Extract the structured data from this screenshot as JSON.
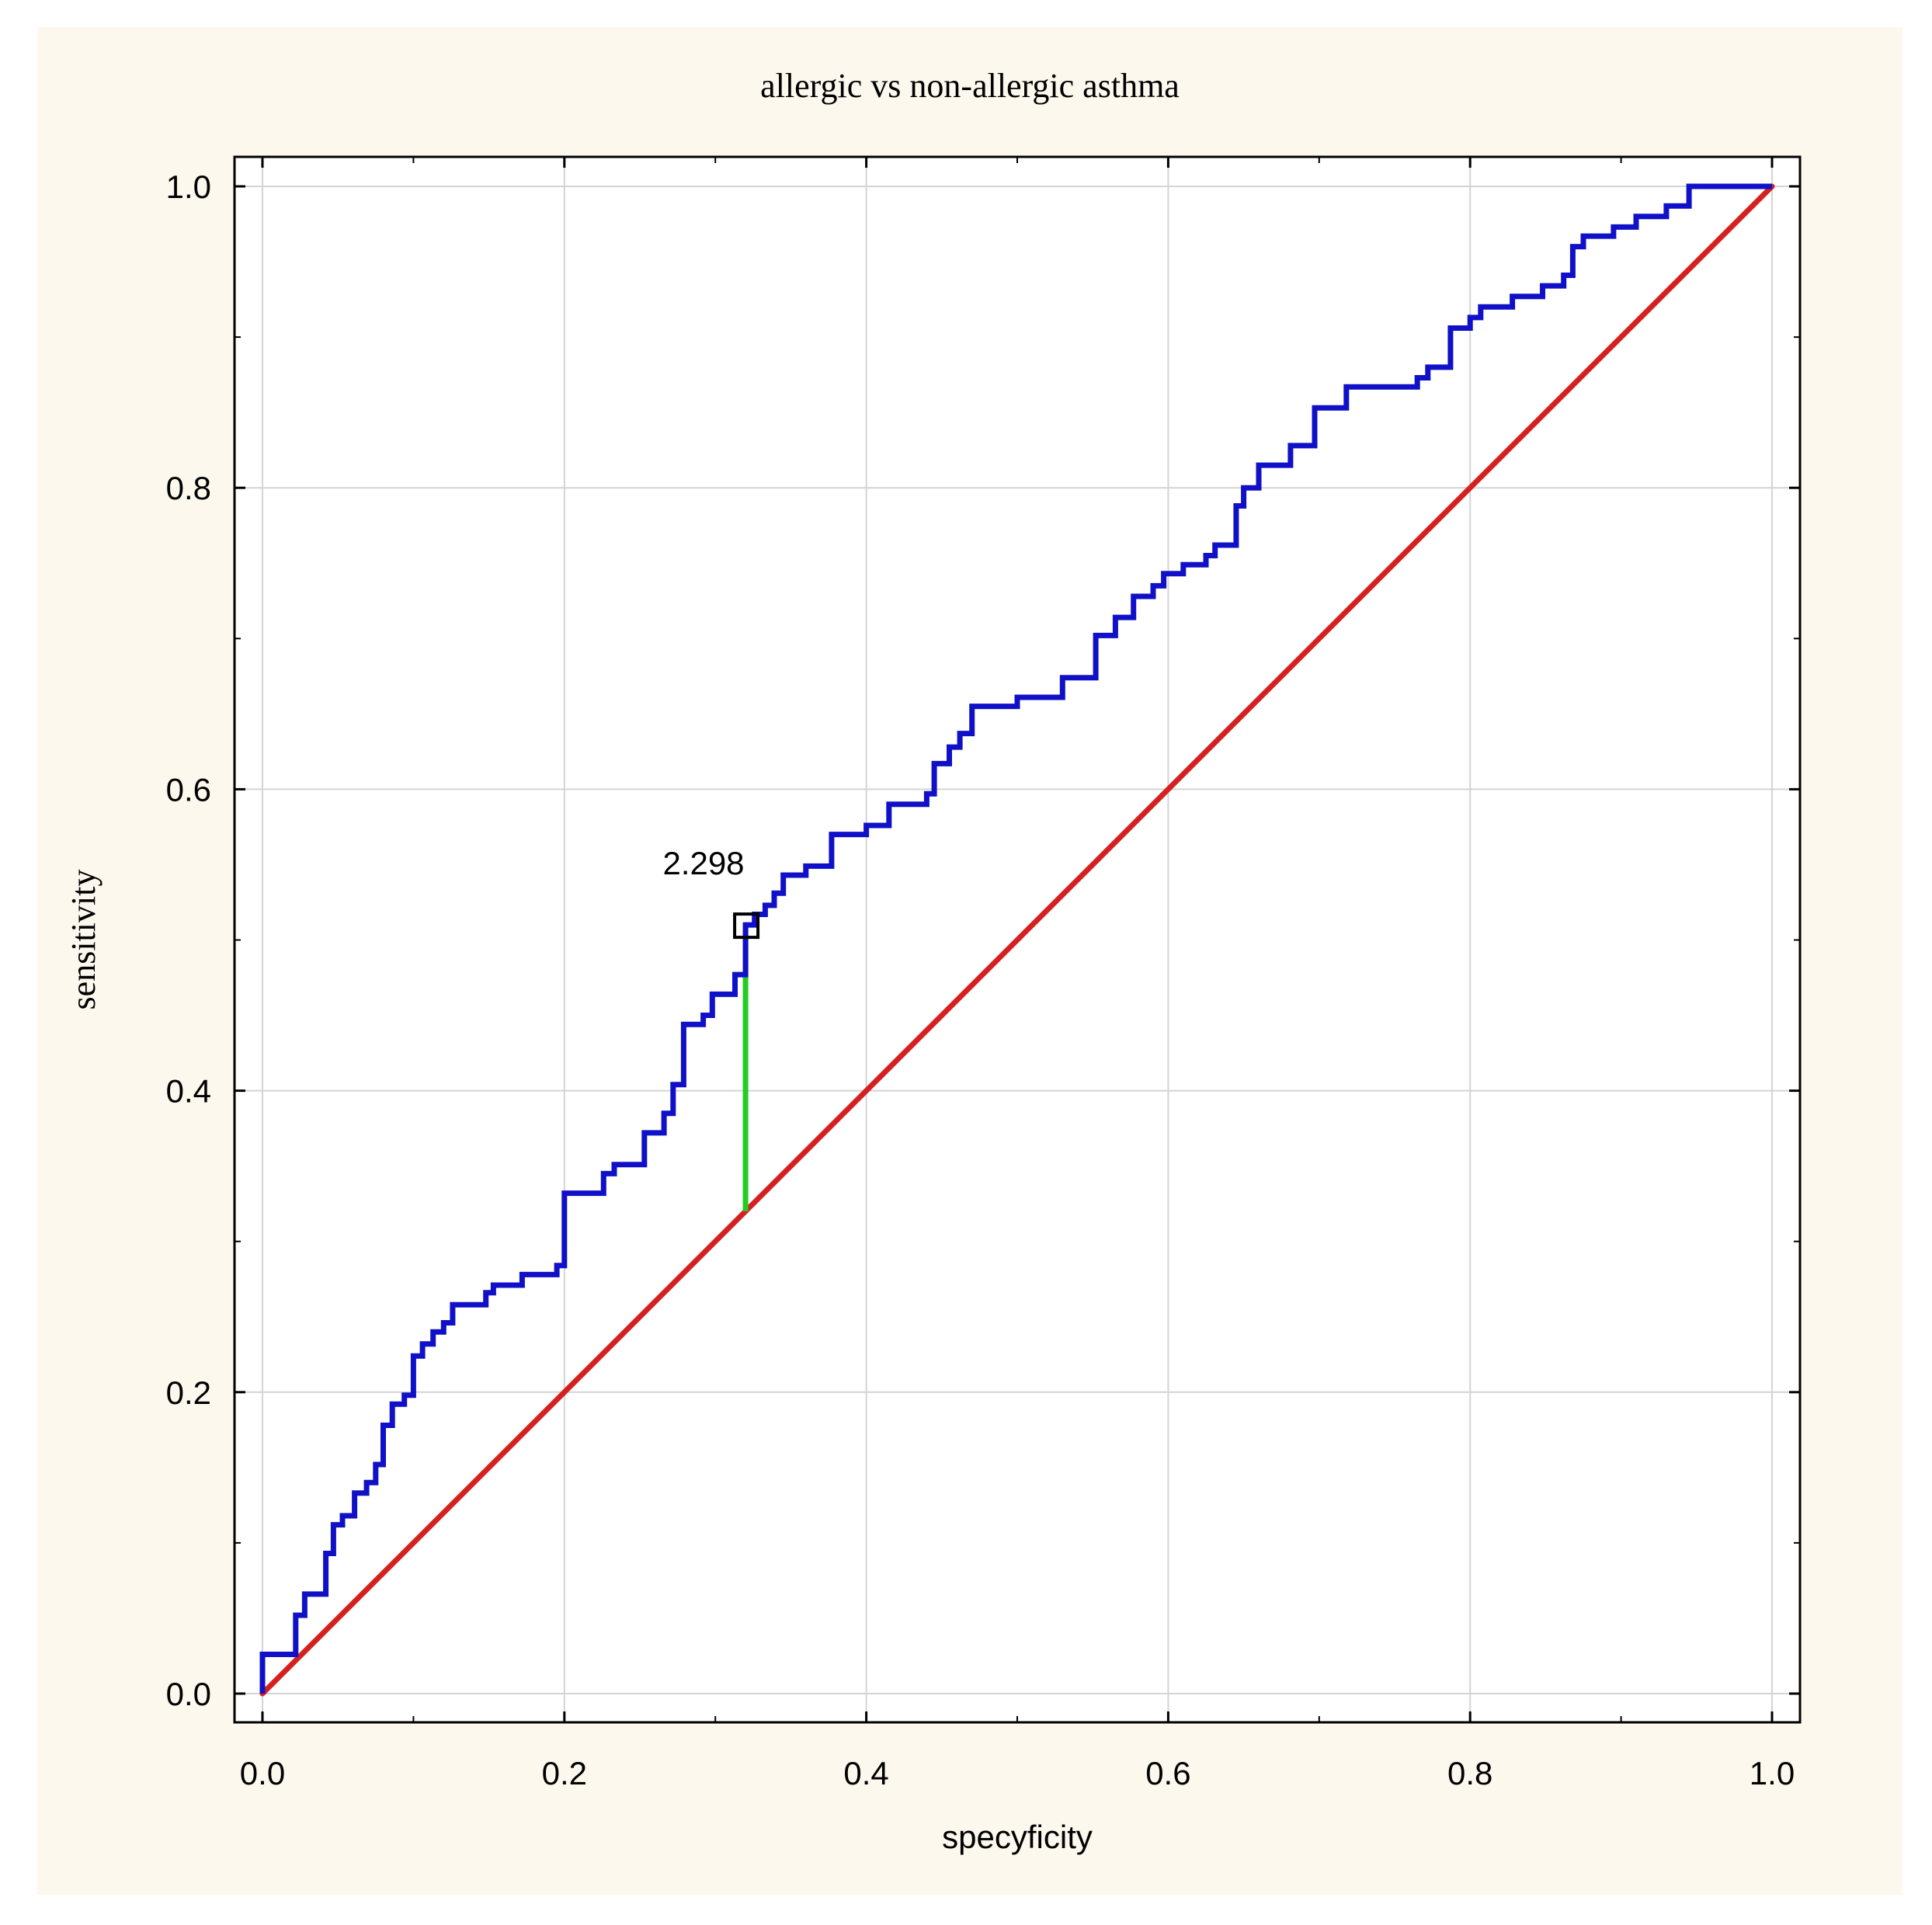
{
  "chart_data": {
    "type": "line",
    "title": "allergic vs non-allergic asthma",
    "xlabel": "specyficity",
    "ylabel": "sensitivity",
    "xlim": [
      0,
      1
    ],
    "ylim": [
      0,
      1
    ],
    "x_ticks": [
      "0.0",
      "0.2",
      "0.4",
      "0.6",
      "0.8",
      "1.0"
    ],
    "y_ticks": [
      "0.0",
      "0.2",
      "0.4",
      "0.6",
      "0.8",
      "1.0"
    ],
    "grid": true,
    "colors": {
      "background": "#fdf8ee",
      "plot_background": "#ffffff",
      "roc_curve": "#1010c8",
      "reference_line": "#d62020",
      "cutoff_line": "#22cc22",
      "grid": "#d4d4d4",
      "axis": "#000000"
    },
    "series": [
      {
        "name": "ROC curve",
        "points": [
          [
            0.0,
            0.0
          ],
          [
            0.0,
            0.026
          ],
          [
            0.022,
            0.026
          ],
          [
            0.022,
            0.052
          ],
          [
            0.028,
            0.052
          ],
          [
            0.028,
            0.066
          ],
          [
            0.042,
            0.066
          ],
          [
            0.042,
            0.093
          ],
          [
            0.047,
            0.093
          ],
          [
            0.047,
            0.112
          ],
          [
            0.053,
            0.112
          ],
          [
            0.053,
            0.118
          ],
          [
            0.061,
            0.118
          ],
          [
            0.061,
            0.133
          ],
          [
            0.069,
            0.133
          ],
          [
            0.069,
            0.14
          ],
          [
            0.075,
            0.14
          ],
          [
            0.075,
            0.152
          ],
          [
            0.08,
            0.152
          ],
          [
            0.08,
            0.178
          ],
          [
            0.086,
            0.178
          ],
          [
            0.086,
            0.192
          ],
          [
            0.094,
            0.192
          ],
          [
            0.094,
            0.198
          ],
          [
            0.1,
            0.198
          ],
          [
            0.1,
            0.224
          ],
          [
            0.106,
            0.224
          ],
          [
            0.106,
            0.232
          ],
          [
            0.113,
            0.232
          ],
          [
            0.113,
            0.24
          ],
          [
            0.12,
            0.24
          ],
          [
            0.12,
            0.246
          ],
          [
            0.126,
            0.246
          ],
          [
            0.126,
            0.258
          ],
          [
            0.148,
            0.258
          ],
          [
            0.148,
            0.266
          ],
          [
            0.153,
            0.266
          ],
          [
            0.153,
            0.271
          ],
          [
            0.172,
            0.271
          ],
          [
            0.172,
            0.278
          ],
          [
            0.195,
            0.278
          ],
          [
            0.195,
            0.284
          ],
          [
            0.2,
            0.284
          ],
          [
            0.2,
            0.332
          ],
          [
            0.226,
            0.332
          ],
          [
            0.226,
            0.345
          ],
          [
            0.233,
            0.345
          ],
          [
            0.233,
            0.351
          ],
          [
            0.253,
            0.351
          ],
          [
            0.253,
            0.372
          ],
          [
            0.266,
            0.372
          ],
          [
            0.266,
            0.385
          ],
          [
            0.272,
            0.385
          ],
          [
            0.272,
            0.404
          ],
          [
            0.279,
            0.404
          ],
          [
            0.279,
            0.444
          ],
          [
            0.292,
            0.444
          ],
          [
            0.292,
            0.45
          ],
          [
            0.298,
            0.45
          ],
          [
            0.298,
            0.464
          ],
          [
            0.313,
            0.464
          ],
          [
            0.313,
            0.477
          ],
          [
            0.32,
            0.477
          ],
          [
            0.32,
            0.51
          ],
          [
            0.326,
            0.51
          ],
          [
            0.326,
            0.517
          ],
          [
            0.333,
            0.517
          ],
          [
            0.333,
            0.523
          ],
          [
            0.339,
            0.523
          ],
          [
            0.339,
            0.531
          ],
          [
            0.345,
            0.531
          ],
          [
            0.345,
            0.543
          ],
          [
            0.36,
            0.543
          ],
          [
            0.36,
            0.549
          ],
          [
            0.377,
            0.549
          ],
          [
            0.377,
            0.57
          ],
          [
            0.4,
            0.57
          ],
          [
            0.4,
            0.576
          ],
          [
            0.415,
            0.576
          ],
          [
            0.415,
            0.59
          ],
          [
            0.44,
            0.59
          ],
          [
            0.44,
            0.597
          ],
          [
            0.445,
            0.597
          ],
          [
            0.445,
            0.617
          ],
          [
            0.455,
            0.617
          ],
          [
            0.455,
            0.628
          ],
          [
            0.462,
            0.628
          ],
          [
            0.462,
            0.637
          ],
          [
            0.47,
            0.637
          ],
          [
            0.47,
            0.655
          ],
          [
            0.5,
            0.655
          ],
          [
            0.5,
            0.661
          ],
          [
            0.53,
            0.661
          ],
          [
            0.53,
            0.674
          ],
          [
            0.552,
            0.674
          ],
          [
            0.552,
            0.702
          ],
          [
            0.565,
            0.702
          ],
          [
            0.565,
            0.714
          ],
          [
            0.577,
            0.714
          ],
          [
            0.577,
            0.728
          ],
          [
            0.59,
            0.728
          ],
          [
            0.59,
            0.735
          ],
          [
            0.597,
            0.735
          ],
          [
            0.597,
            0.743
          ],
          [
            0.61,
            0.743
          ],
          [
            0.61,
            0.749
          ],
          [
            0.625,
            0.749
          ],
          [
            0.625,
            0.755
          ],
          [
            0.631,
            0.755
          ],
          [
            0.631,
            0.762
          ],
          [
            0.645,
            0.762
          ],
          [
            0.645,
            0.788
          ],
          [
            0.65,
            0.788
          ],
          [
            0.65,
            0.8
          ],
          [
            0.66,
            0.8
          ],
          [
            0.66,
            0.815
          ],
          [
            0.681,
            0.815
          ],
          [
            0.681,
            0.828
          ],
          [
            0.697,
            0.828
          ],
          [
            0.697,
            0.853
          ],
          [
            0.718,
            0.853
          ],
          [
            0.718,
            0.867
          ],
          [
            0.765,
            0.867
          ],
          [
            0.765,
            0.873
          ],
          [
            0.772,
            0.873
          ],
          [
            0.772,
            0.88
          ],
          [
            0.787,
            0.88
          ],
          [
            0.787,
            0.906
          ],
          [
            0.8,
            0.906
          ],
          [
            0.8,
            0.913
          ],
          [
            0.807,
            0.913
          ],
          [
            0.807,
            0.92
          ],
          [
            0.828,
            0.92
          ],
          [
            0.828,
            0.927
          ],
          [
            0.848,
            0.927
          ],
          [
            0.848,
            0.934
          ],
          [
            0.862,
            0.934
          ],
          [
            0.862,
            0.941
          ],
          [
            0.868,
            0.941
          ],
          [
            0.868,
            0.96
          ],
          [
            0.875,
            0.96
          ],
          [
            0.875,
            0.967
          ],
          [
            0.895,
            0.967
          ],
          [
            0.895,
            0.973
          ],
          [
            0.91,
            0.973
          ],
          [
            0.91,
            0.98
          ],
          [
            0.93,
            0.98
          ],
          [
            0.93,
            0.987
          ],
          [
            0.945,
            0.987
          ],
          [
            0.945,
            1.0
          ],
          [
            1.0,
            1.0
          ]
        ]
      },
      {
        "name": "reference line",
        "points": [
          [
            0.0,
            0.0
          ],
          [
            1.0,
            1.0
          ]
        ]
      }
    ],
    "cutoff": {
      "label": "2.298",
      "specificity": 0.32,
      "sensitivity": 0.51,
      "reference_sensitivity": 0.32
    }
  }
}
